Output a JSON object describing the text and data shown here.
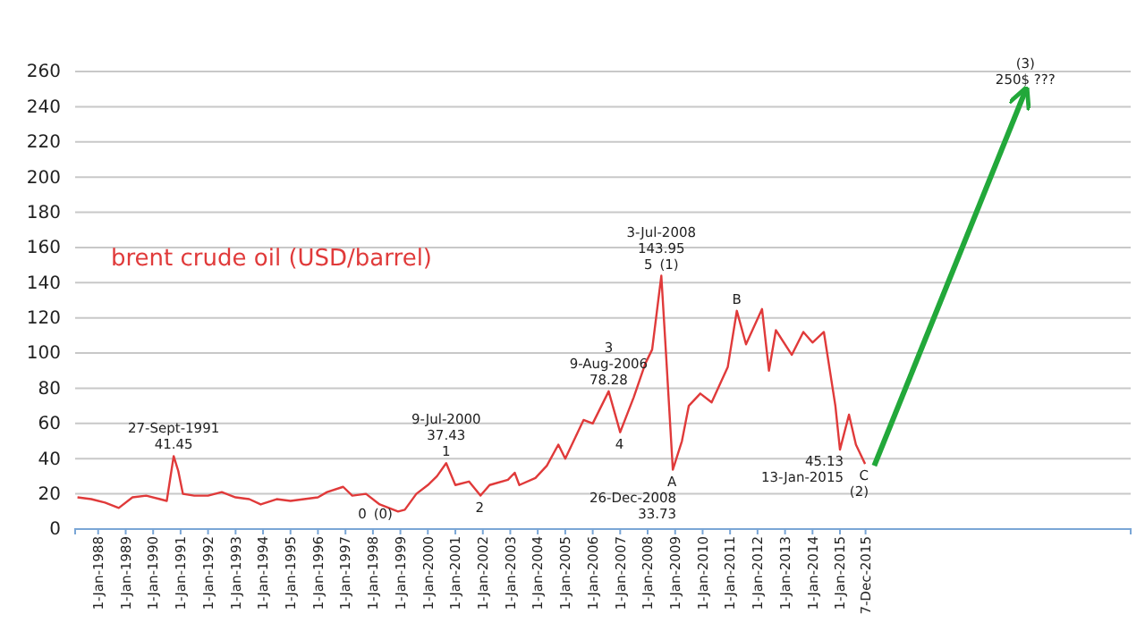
{
  "chart_data": {
    "type": "line",
    "title": "brent crude oil (USD/barrel)",
    "xlim": [
      "1987-03",
      "2025-08"
    ],
    "ylim": [
      0,
      260
    ],
    "yticks": [
      0,
      20,
      40,
      60,
      80,
      100,
      120,
      140,
      160,
      180,
      200,
      220,
      240,
      260
    ],
    "xticks": [
      {
        "value": "1988-01-01",
        "label": "1-Jan-1988"
      },
      {
        "value": "1989-01-01",
        "label": "1-Jan-1989"
      },
      {
        "value": "1990-01-01",
        "label": "1-Jan-1990"
      },
      {
        "value": "1991-01-01",
        "label": "1-Jan-1991"
      },
      {
        "value": "1992-01-01",
        "label": "1-Jan-1992"
      },
      {
        "value": "1993-01-01",
        "label": "1-Jan-1993"
      },
      {
        "value": "1994-01-01",
        "label": "1-Jan-1994"
      },
      {
        "value": "1995-01-01",
        "label": "1-Jan-1995"
      },
      {
        "value": "1996-01-01",
        "label": "1-Jan-1996"
      },
      {
        "value": "1997-01-01",
        "label": "1-Jan-1997"
      },
      {
        "value": "1998-01-01",
        "label": "1-Jan-1998"
      },
      {
        "value": "1999-01-01",
        "label": "1-Jan-1999"
      },
      {
        "value": "2000-01-01",
        "label": "1-Jan-2000"
      },
      {
        "value": "2001-01-01",
        "label": "1-Jan-2001"
      },
      {
        "value": "2002-01-01",
        "label": "1-Jan-2002"
      },
      {
        "value": "2003-01-01",
        "label": "1-Jan-2003"
      },
      {
        "value": "2004-01-01",
        "label": "1-Jan-2004"
      },
      {
        "value": "2005-01-01",
        "label": "1-Jan-2005"
      },
      {
        "value": "2006-01-01",
        "label": "1-Jan-2006"
      },
      {
        "value": "2007-01-01",
        "label": "1-Jan-2007"
      },
      {
        "value": "2008-01-01",
        "label": "1-Jan-2008"
      },
      {
        "value": "2009-01-01",
        "label": "1-Jan-2009"
      },
      {
        "value": "2010-01-01",
        "label": "1-Jan-2010"
      },
      {
        "value": "2011-01-01",
        "label": "1-Jan-2011"
      },
      {
        "value": "2012-01-01",
        "label": "1-Jan-2012"
      },
      {
        "value": "2013-01-01",
        "label": "1-Jan-2013"
      },
      {
        "value": "2014-01-01",
        "label": "1-Jan-2014"
      },
      {
        "value": "2015-01-01",
        "label": "1-Jan-2015"
      },
      {
        "value": "2015-12-07",
        "label": "7-Dec-2015"
      }
    ],
    "grid": "y",
    "series": [
      {
        "color": "#e03a3a",
        "x": [
          "1987-04",
          "1987-10",
          "1988-04",
          "1988-10",
          "1989-04",
          "1989-10",
          "1990-04",
          "1990-07",
          "1990-10",
          "1990-12",
          "1991-02",
          "1991-07",
          "1992-01",
          "1992-07",
          "1993-01",
          "1993-07",
          "1993-12",
          "1994-07",
          "1995-01",
          "1995-07",
          "1996-01",
          "1996-05",
          "1996-12",
          "1997-04",
          "1997-10",
          "1998-04",
          "1998-12",
          "1999-03",
          "1999-08",
          "2000-01",
          "2000-05",
          "2000-09",
          "2001-01",
          "2001-07",
          "2001-12",
          "2002-04",
          "2002-12",
          "2003-03",
          "2003-05",
          "2003-12",
          "2004-05",
          "2004-10",
          "2005-01",
          "2005-09",
          "2006-01",
          "2006-08",
          "2007-01",
          "2007-07",
          "2007-12",
          "2008-03",
          "2008-07",
          "2008-09",
          "2008-12",
          "2009-04",
          "2009-07",
          "2009-12",
          "2010-05",
          "2010-12",
          "2011-04",
          "2011-08",
          "2012-03",
          "2012-06",
          "2012-09",
          "2013-04",
          "2013-09",
          "2014-01",
          "2014-06",
          "2014-11",
          "2015-01",
          "2015-05",
          "2015-08",
          "2015-12"
        ],
        "values": [
          18,
          17,
          15,
          12,
          18,
          19,
          17,
          16,
          41.45,
          33,
          20,
          19,
          19,
          21,
          18,
          17,
          14,
          17,
          16,
          17,
          18,
          21,
          24,
          19,
          20,
          14,
          10,
          11,
          20,
          25,
          30,
          37.43,
          25,
          27,
          19,
          25,
          28,
          32,
          25,
          29,
          36,
          48,
          40,
          62,
          60,
          78.28,
          55,
          75,
          94,
          102,
          143.95,
          100,
          33.73,
          50,
          70,
          77,
          72,
          92,
          124,
          105,
          125,
          90,
          113,
          99,
          112,
          106,
          112,
          70,
          45.13,
          65,
          48,
          37
        ]
      },
      {
        "color": "#22a83a",
        "x": [
          "2016-04",
          "2021-10"
        ],
        "values": [
          36,
          249
        ]
      }
    ],
    "annotations": [
      {
        "text": "27-Sept-1991",
        "x": "1990-10",
        "y": 41.45
      },
      {
        "text": "41.45",
        "x": "1990-10",
        "y": 41.45
      },
      {
        "text": "9-Jul-2000",
        "x": "2000-09",
        "y": 37.43
      },
      {
        "text": "37.43",
        "x": "2000-09",
        "y": 37.43
      },
      {
        "text": "1",
        "x": "2000-09",
        "y": 37.43
      },
      {
        "text": "0",
        "x": "1998-12",
        "y": 10
      },
      {
        "text": "(0)",
        "x": "1998-12",
        "y": 10
      },
      {
        "text": "2",
        "x": "2001-12",
        "y": 19
      },
      {
        "text": "3",
        "x": "2006-08",
        "y": 78.28
      },
      {
        "text": "9-Aug-2006",
        "x": "2006-08",
        "y": 78.28
      },
      {
        "text": "78.28",
        "x": "2006-08",
        "y": 78.28
      },
      {
        "text": "4",
        "x": "2007-01",
        "y": 55
      },
      {
        "text": "3-Jul-2008",
        "x": "2008-07",
        "y": 143.95
      },
      {
        "text": "143.95",
        "x": "2008-07",
        "y": 143.95
      },
      {
        "text": "5",
        "x": "2008-07",
        "y": 143.95
      },
      {
        "text": "(1)",
        "x": "2008-07",
        "y": 143.95
      },
      {
        "text": "A",
        "x": "2008-12",
        "y": 33.73
      },
      {
        "text": "26-Dec-2008",
        "x": "2008-12",
        "y": 33.73
      },
      {
        "text": "33.73",
        "x": "2008-12",
        "y": 33.73
      },
      {
        "text": "B",
        "x": "2011-04",
        "y": 124
      },
      {
        "text": "45.13",
        "x": "2015-01",
        "y": 45.13
      },
      {
        "text": "13-Jan-2015",
        "x": "2015-01",
        "y": 45.13
      },
      {
        "text": "C",
        "x": "2015-12",
        "y": 37
      },
      {
        "text": "(2)",
        "x": "2015-12",
        "y": 37
      },
      {
        "text": "(3)",
        "x": "2021-10",
        "y": 249
      },
      {
        "text": "250$ ???",
        "x": "2021-10",
        "y": 249
      }
    ]
  }
}
